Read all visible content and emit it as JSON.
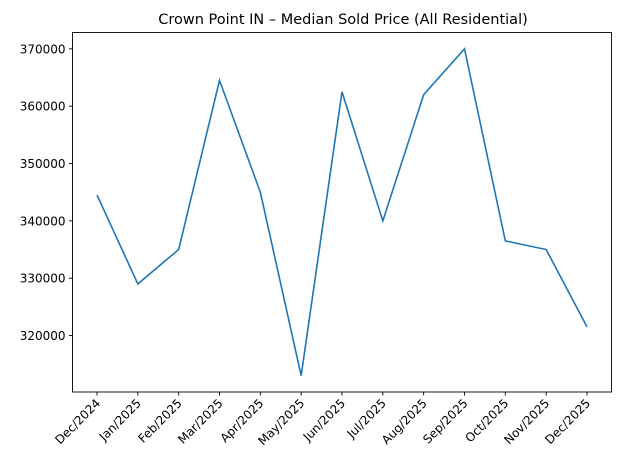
{
  "chart_data": {
    "type": "line",
    "title": "Crown Point IN – Median Sold Price (All Residential)",
    "xlabel": "",
    "ylabel": "",
    "categories": [
      "Dec/2024",
      "Jan/2025",
      "Feb/2025",
      "Mar/2025",
      "Apr/2025",
      "May/2025",
      "Jun/2025",
      "Jul/2025",
      "Aug/2025",
      "Sep/2025",
      "Oct/2025",
      "Nov/2025",
      "Dec/2025"
    ],
    "values": [
      344500,
      329000,
      335000,
      364500,
      345000,
      313000,
      362500,
      340000,
      362000,
      370000,
      336500,
      335000,
      321500
    ],
    "ylim": [
      310150,
      372850
    ],
    "yticks": [
      320000,
      330000,
      340000,
      350000,
      360000,
      370000
    ],
    "ytick_labels": [
      "320000",
      "330000",
      "340000",
      "350000",
      "360000",
      "370000"
    ],
    "grid": false,
    "line_color": "#1f77b4",
    "xtick_rotation_deg": 45
  }
}
